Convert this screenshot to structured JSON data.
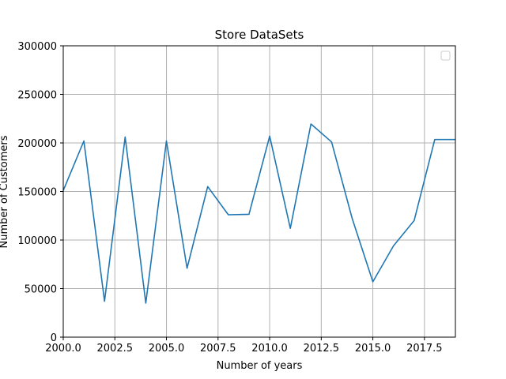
{
  "chart_data": {
    "type": "line",
    "title": "Store DataSets",
    "xlabel": "Number of years",
    "ylabel": "Number of Customers",
    "xlim": [
      2000,
      2019
    ],
    "ylim": [
      0,
      300000
    ],
    "x_ticks": [
      2000.0,
      2002.5,
      2005.0,
      2007.5,
      2010.0,
      2012.5,
      2015.0,
      2017.5
    ],
    "x_tick_labels": [
      "2000.0",
      "2002.5",
      "2005.0",
      "2007.5",
      "2010.0",
      "2012.5",
      "2015.0",
      "2017.5"
    ],
    "y_ticks": [
      0,
      50000,
      100000,
      150000,
      200000,
      250000,
      300000
    ],
    "y_tick_labels": [
      "0",
      "50000",
      "100000",
      "150000",
      "200000",
      "250000",
      "300000"
    ],
    "grid": true,
    "legend": {
      "placement": "top-right",
      "entries": []
    },
    "series": [
      {
        "color": "#1f77b4",
        "x": [
          2000,
          2001,
          2002,
          2003,
          2004,
          2005,
          2006,
          2007,
          2008,
          2009,
          2010,
          2011,
          2012,
          2013,
          2014,
          2015,
          2016,
          2017,
          2018,
          2019
        ],
        "y": [
          151000,
          202000,
          37000,
          206000,
          35000,
          202000,
          71000,
          155000,
          126000,
          126500,
          207000,
          112000,
          219500,
          201000,
          122000,
          57000,
          94000,
          120000,
          203500,
          203500
        ]
      }
    ]
  }
}
